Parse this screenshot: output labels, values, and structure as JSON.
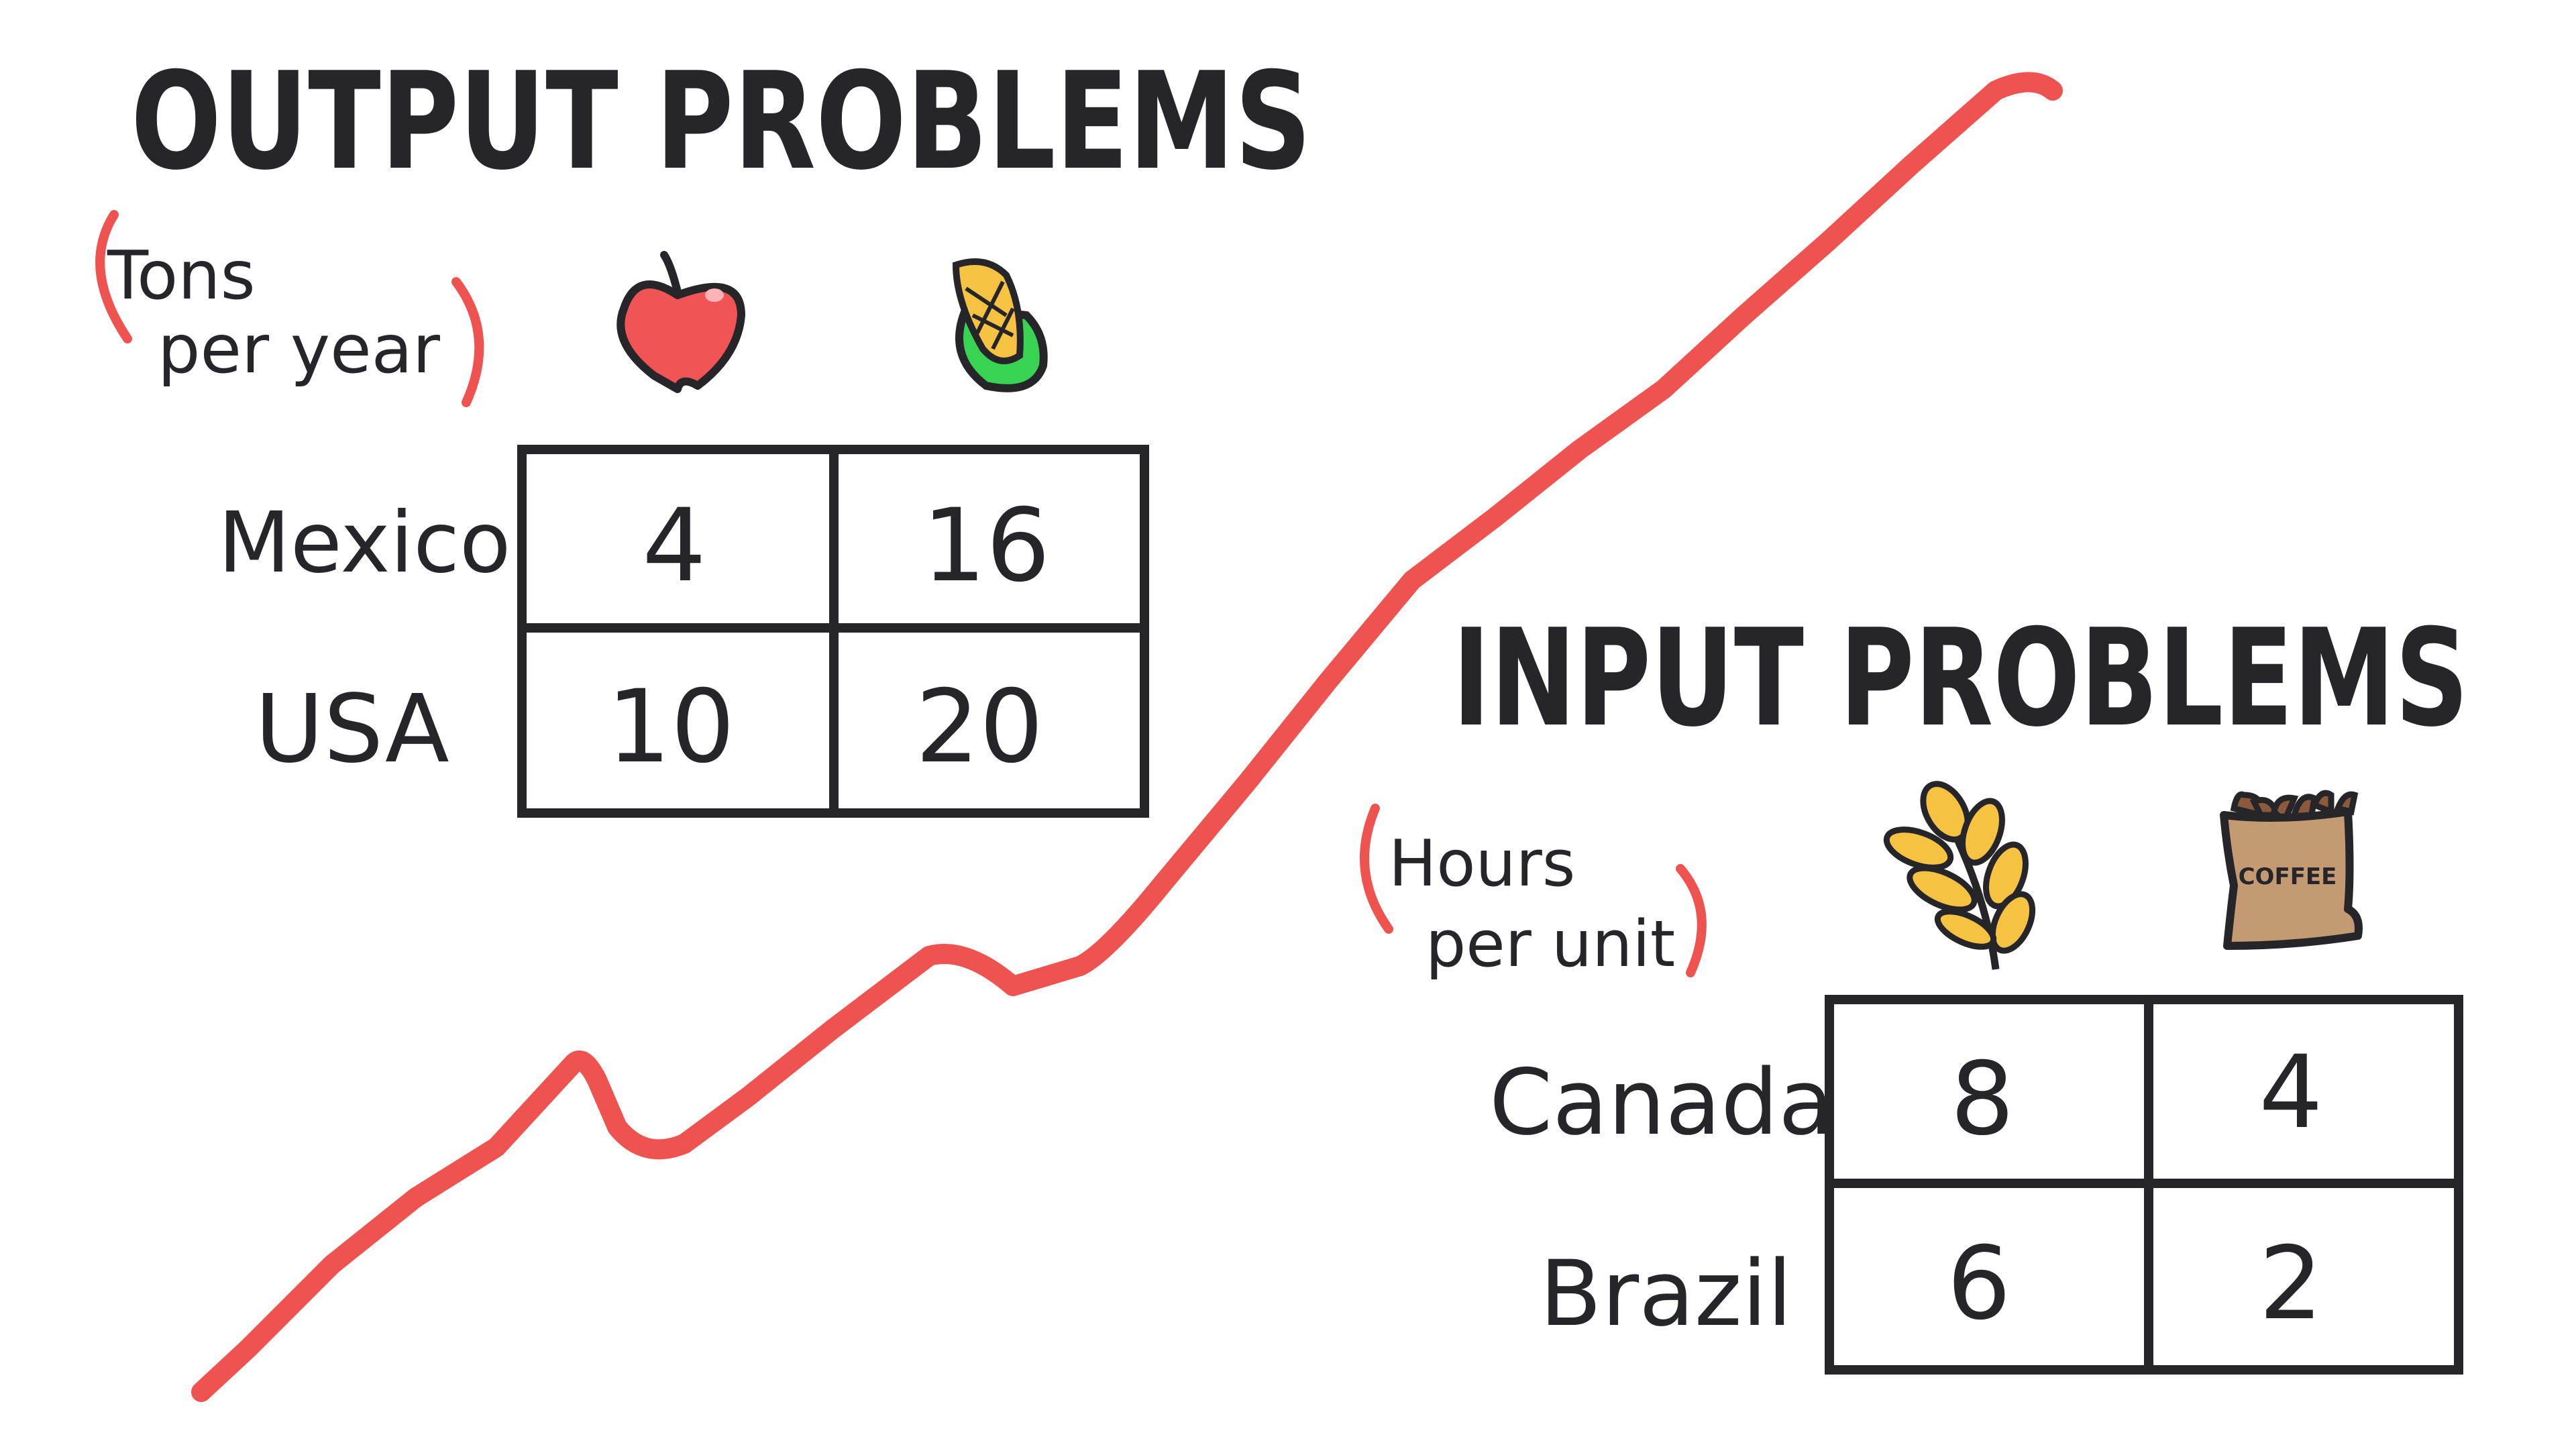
{
  "colors": {
    "ink": "#25252a",
    "accent_line": "#ef5350",
    "apple": "#f05454",
    "corn_yellow": "#f5c242",
    "corn_husk": "#39d353",
    "wheat": "#f5c242",
    "coffee_bag": "#c49a72",
    "coffee_bean": "#8a5a3c"
  },
  "output": {
    "title": "OUTPUT PROBLEMS",
    "unit_line1": "Tons",
    "unit_line2": "per year",
    "icons": [
      "apple-icon",
      "corn-icon"
    ],
    "rows": [
      {
        "label": "Mexico",
        "values": [
          "4",
          "16"
        ]
      },
      {
        "label": "USA",
        "values": [
          "10",
          "20"
        ]
      }
    ]
  },
  "input": {
    "title": "INPUT PROBLEMS",
    "unit_line1": "Hours",
    "unit_line2": "per unit",
    "icons": [
      "wheat-icon",
      "coffee-bag-icon"
    ],
    "coffee_label": "COFFEE",
    "rows": [
      {
        "label": "Canada",
        "values": [
          "8",
          "4"
        ]
      },
      {
        "label": "Brazil",
        "values": [
          "6",
          "2"
        ]
      }
    ]
  }
}
